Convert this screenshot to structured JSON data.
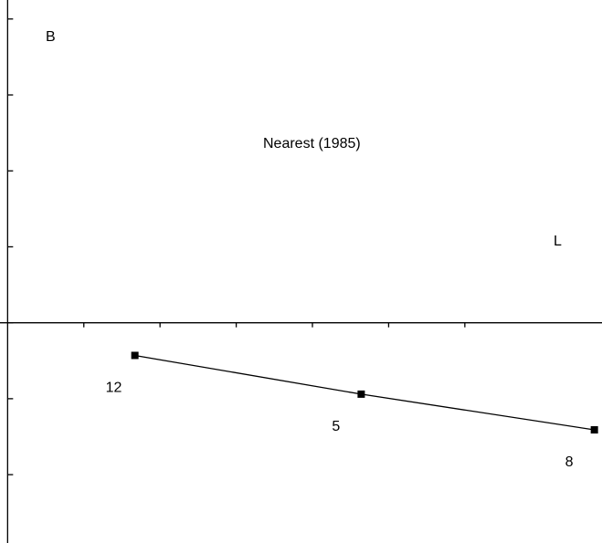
{
  "chart_data": {
    "type": "line",
    "title": "",
    "annotation": "Nearest (1985)",
    "corner_labels": {
      "top_left": "B",
      "right": "L"
    },
    "x_axis": {
      "range": [
        -0.1,
        7.8
      ],
      "ticks": [
        1,
        2,
        3,
        4,
        5,
        6
      ]
    },
    "y_axis": {
      "range": [
        -2.9,
        4.25
      ],
      "ticks": [
        -2,
        -1,
        0,
        1,
        2,
        3,
        4
      ]
    },
    "grid": false,
    "series": [
      {
        "color": "#000000",
        "marker": "square",
        "points": [
          {
            "x": 1.67,
            "y": -0.43,
            "label": "12"
          },
          {
            "x": 4.64,
            "y": -0.94,
            "label": "5"
          },
          {
            "x": 7.7,
            "y": -1.41,
            "label": "8"
          }
        ]
      }
    ]
  }
}
